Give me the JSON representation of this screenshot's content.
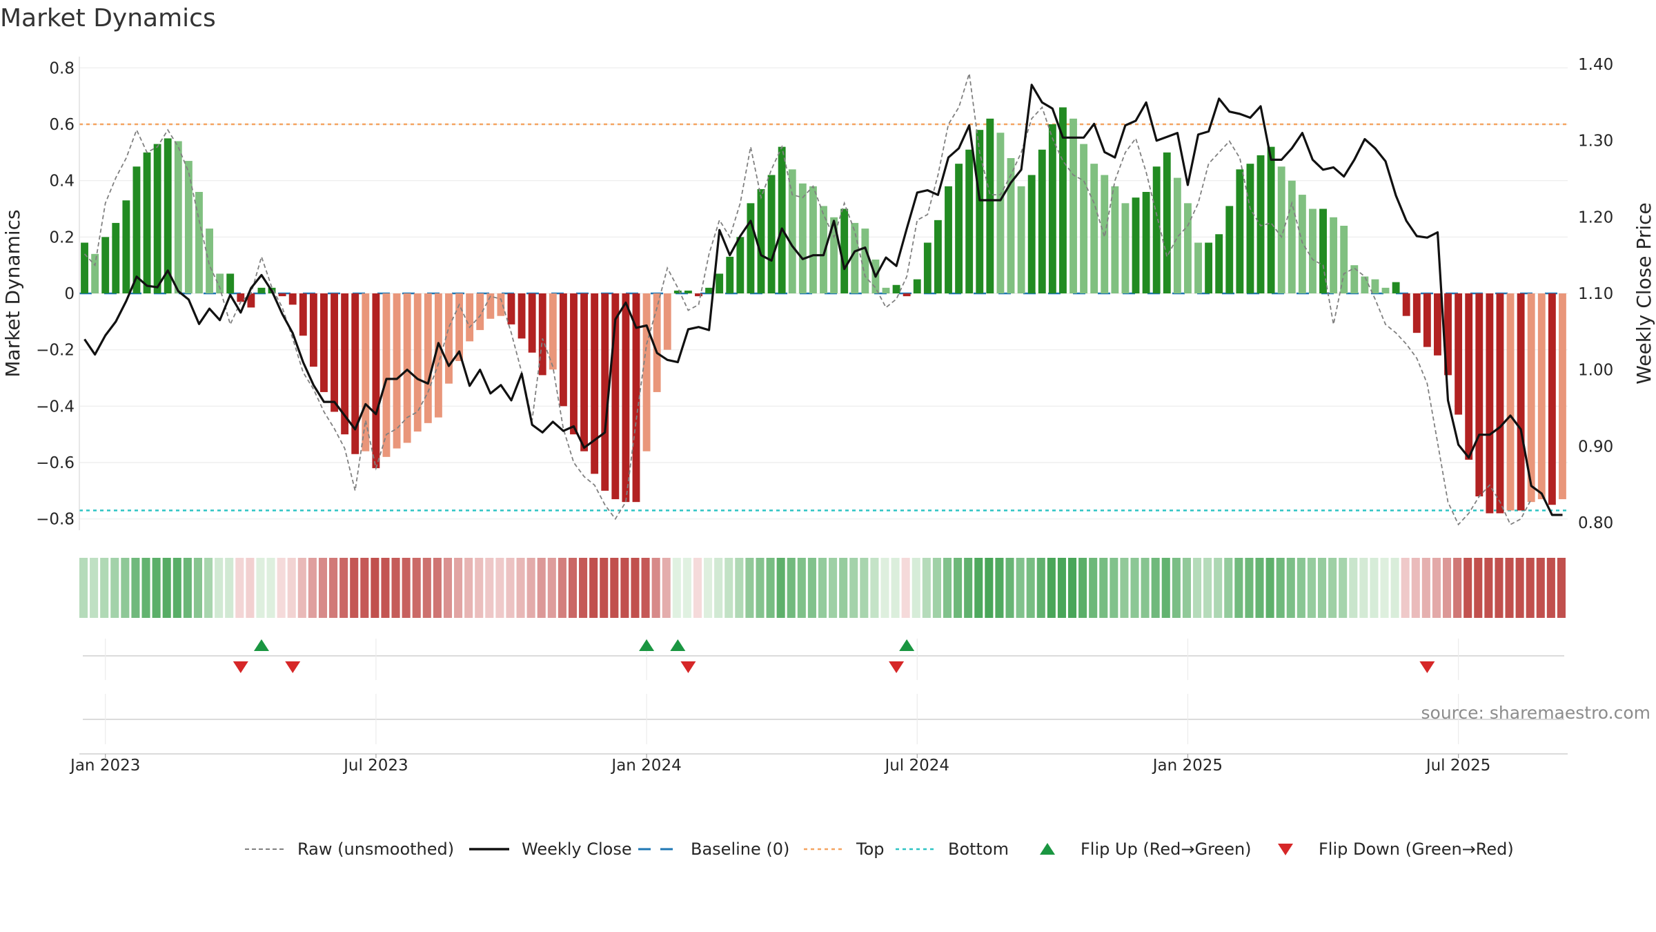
{
  "title": "Market Dynamics",
  "source_label": "source: sharemaestro.com",
  "colors": {
    "green_strong": "#228b22",
    "green_light": "#80c080",
    "red_strong": "#b22222",
    "red_light": "#e9967a",
    "price_line": "#111111",
    "raw_line": "#808080",
    "baseline": "#1f77b4",
    "top_line": "#f4a460",
    "bottom_line": "#2ec4c4",
    "flip_up": "#1a9641",
    "flip_down": "#d62728"
  },
  "chart_data": {
    "type": "bar",
    "title": "Market Dynamics",
    "ylabel": "Market Dynamics",
    "y2label": "Weekly Close Price",
    "ylim": [
      -0.84,
      0.84
    ],
    "y2lim": [
      0.79,
      1.41
    ],
    "yticks": [
      "0.8",
      "0.6",
      "0.4",
      "0.2",
      "0",
      "−0.2",
      "−0.4",
      "−0.6",
      "−0.8"
    ],
    "y2ticks": [
      "1.40",
      "1.30",
      "1.20",
      "1.10",
      "1.00",
      "0.90",
      "0.80"
    ],
    "xticks": [
      "Jan 2023",
      "Jul 2023",
      "Jan 2024",
      "Jul 2024",
      "Jan 2025",
      "Jul 2025"
    ],
    "top_level": 0.6,
    "bottom_level": -0.77,
    "baseline_level": 0,
    "grid": true,
    "legend_position": "bottom-center",
    "weeks": 143,
    "x_first_week_index": -2,
    "xtick_week_index": [
      0,
      26,
      52,
      78,
      104,
      130
    ],
    "values": [
      0.18,
      0.14,
      0.2,
      0.25,
      0.33,
      0.45,
      0.5,
      0.53,
      0.55,
      0.54,
      0.47,
      0.36,
      0.23,
      0.07,
      0.07,
      -0.03,
      -0.05,
      0.02,
      0.02,
      -0.01,
      -0.04,
      -0.15,
      -0.26,
      -0.35,
      -0.42,
      -0.5,
      -0.57,
      -0.56,
      -0.62,
      -0.58,
      -0.55,
      -0.53,
      -0.49,
      -0.46,
      -0.44,
      -0.32,
      -0.24,
      -0.17,
      -0.13,
      -0.09,
      -0.08,
      -0.11,
      -0.16,
      -0.21,
      -0.29,
      -0.27,
      -0.4,
      -0.5,
      -0.56,
      -0.64,
      -0.7,
      -0.73,
      -0.74,
      -0.74,
      -0.56,
      -0.35,
      -0.2,
      0.01,
      0.01,
      -0.01,
      0.02,
      0.07,
      0.13,
      0.2,
      0.32,
      0.37,
      0.42,
      0.52,
      0.44,
      0.39,
      0.38,
      0.31,
      0.27,
      0.3,
      0.25,
      0.23,
      0.12,
      0.02,
      0.03,
      -0.01,
      0.05,
      0.18,
      0.26,
      0.38,
      0.46,
      0.51,
      0.58,
      0.62,
      0.57,
      0.48,
      0.38,
      0.42,
      0.51,
      0.6,
      0.66,
      0.62,
      0.53,
      0.46,
      0.42,
      0.38,
      0.32,
      0.34,
      0.36,
      0.45,
      0.5,
      0.41,
      0.32,
      0.18,
      0.18,
      0.21,
      0.31,
      0.44,
      0.46,
      0.49,
      0.52,
      0.45,
      0.4,
      0.35,
      0.3,
      0.3,
      0.27,
      0.24,
      0.1,
      0.06,
      0.05,
      0.02,
      0.04,
      -0.08,
      -0.14,
      -0.19,
      -0.22,
      -0.29,
      -0.43,
      -0.59,
      -0.72,
      -0.78,
      -0.78,
      -0.77,
      -0.77,
      -0.74,
      -0.73,
      -0.75,
      -0.73
    ],
    "raw": [
      0.14,
      0.1,
      0.32,
      0.41,
      0.48,
      0.58,
      0.5,
      0.52,
      0.58,
      0.52,
      0.43,
      0.26,
      0.1,
      0.02,
      -0.11,
      -0.03,
      0.0,
      0.13,
      0.02,
      -0.05,
      -0.16,
      -0.28,
      -0.34,
      -0.42,
      -0.48,
      -0.55,
      -0.7,
      -0.45,
      -0.62,
      -0.5,
      -0.48,
      -0.44,
      -0.42,
      -0.35,
      -0.25,
      -0.12,
      -0.04,
      -0.12,
      -0.08,
      -0.01,
      -0.02,
      -0.14,
      -0.28,
      -0.45,
      -0.16,
      -0.26,
      -0.48,
      -0.6,
      -0.65,
      -0.68,
      -0.75,
      -0.8,
      -0.74,
      -0.45,
      -0.18,
      -0.05,
      0.09,
      0.02,
      -0.06,
      -0.04,
      0.14,
      0.26,
      0.2,
      0.32,
      0.52,
      0.34,
      0.44,
      0.52,
      0.35,
      0.34,
      0.38,
      0.28,
      0.2,
      0.32,
      0.22,
      0.06,
      0.02,
      -0.05,
      -0.02,
      0.06,
      0.26,
      0.28,
      0.42,
      0.6,
      0.66,
      0.78,
      0.5,
      0.35,
      0.35,
      0.42,
      0.5,
      0.62,
      0.66,
      0.55,
      0.47,
      0.42,
      0.4,
      0.32,
      0.2,
      0.4,
      0.5,
      0.55,
      0.43,
      0.28,
      0.13,
      0.2,
      0.24,
      0.32,
      0.46,
      0.5,
      0.54,
      0.48,
      0.3,
      0.24,
      0.25,
      0.2,
      0.32,
      0.18,
      0.12,
      0.1,
      -0.11,
      0.07,
      0.09,
      0.06,
      -0.02,
      -0.11,
      -0.14,
      -0.18,
      -0.23,
      -0.32,
      -0.53,
      -0.74,
      -0.82,
      -0.78,
      -0.72,
      -0.68,
      -0.74,
      -0.82,
      -0.8,
      -0.73
    ],
    "close": [
      1.04,
      1.02,
      1.045,
      1.063,
      1.09,
      1.122,
      1.11,
      1.108,
      1.13,
      1.103,
      1.092,
      1.06,
      1.08,
      1.065,
      1.098,
      1.075,
      1.107,
      1.124,
      1.103,
      1.073,
      1.048,
      1.01,
      0.98,
      0.958,
      0.958,
      0.94,
      0.922,
      0.955,
      0.942,
      0.988,
      0.988,
      1.0,
      0.988,
      0.982,
      1.035,
      1.005,
      1.024,
      0.979,
      1.0,
      0.969,
      0.98,
      0.96,
      0.995,
      0.928,
      0.918,
      0.932,
      0.92,
      0.926,
      0.898,
      0.908,
      0.918,
      1.066,
      1.088,
      1.055,
      1.058,
      1.022,
      1.013,
      1.01,
      1.053,
      1.056,
      1.052,
      1.183,
      1.15,
      1.175,
      1.195,
      1.15,
      1.143,
      1.185,
      1.162,
      1.145,
      1.15,
      1.15,
      1.195,
      1.132,
      1.155,
      1.16,
      1.122,
      1.147,
      1.136,
      1.185,
      1.232,
      1.235,
      1.229,
      1.278,
      1.29,
      1.32,
      1.222,
      1.222,
      1.222,
      1.245,
      1.262,
      1.373,
      1.35,
      1.342,
      1.304,
      1.304,
      1.304,
      1.322,
      1.285,
      1.278,
      1.32,
      1.326,
      1.35,
      1.3,
      1.305,
      1.31,
      1.242,
      1.308,
      1.312,
      1.355,
      1.338,
      1.335,
      1.33,
      1.345,
      1.275,
      1.275,
      1.29,
      1.31,
      1.275,
      1.262,
      1.265,
      1.253,
      1.275,
      1.302,
      1.29,
      1.273,
      1.228,
      1.195,
      1.175,
      1.173,
      1.18,
      0.96,
      0.902,
      0.885,
      0.915,
      0.915,
      0.925,
      0.94,
      0.922,
      0.848,
      0.838,
      0.81,
      0.81
    ],
    "flip_up_week_index": [
      17,
      54,
      57,
      79
    ],
    "flip_down_week_index": [
      15,
      20,
      58,
      78,
      129
    ],
    "legend": [
      "Raw (unsmoothed)",
      "Weekly Close",
      "Baseline (0)",
      "Top",
      "Bottom",
      "Flip Up (Red→Green)",
      "Flip Down (Green→Red)"
    ]
  }
}
